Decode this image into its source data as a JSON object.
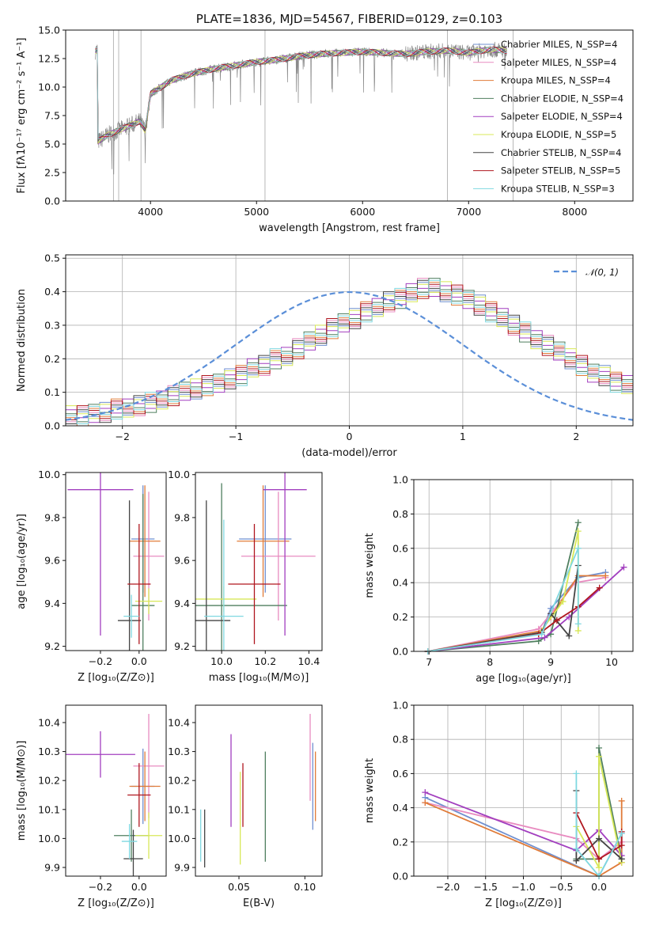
{
  "chart_data": [
    {
      "type": "line",
      "title": "PLATE=1836, MJD=54567, FIBERID=0129, z=0.103",
      "xlabel": "wavelength [Angstrom, rest frame]",
      "ylabel": "Flux [fλ10⁻¹⁷ erg cm⁻² s⁻¹ A⁻¹]",
      "xlim": [
        3200,
        8550
      ],
      "ylim": [
        0,
        15
      ],
      "xticks": [
        "4000",
        "5000",
        "6000",
        "7000",
        "8000"
      ],
      "yticks": [
        "0.0",
        "2.5",
        "5.0",
        "7.5",
        "10.0",
        "12.5",
        "15.0"
      ],
      "legend_position": "right",
      "spectrum_anchor_x": [
        3500,
        3600,
        3700,
        3800,
        3900,
        3950,
        4000,
        4100,
        4200,
        4400,
        4600,
        4800,
        5000,
        5200,
        5400,
        5600,
        5800,
        6000,
        6200,
        6400,
        6600,
        6800,
        7000,
        7200,
        7350
      ],
      "spectrum_anchor_y": [
        5.2,
        5.8,
        6.2,
        6.6,
        7.0,
        6.2,
        9.4,
        10.0,
        10.6,
        11.2,
        11.6,
        11.9,
        12.2,
        12.4,
        12.7,
        12.9,
        13.0,
        13.1,
        13.0,
        12.9,
        13.1,
        13.2,
        13.0,
        13.3,
        13.2
      ],
      "series": [
        {
          "name": "Chabrier MILES, N_SSP=4",
          "color": "#6f8fcf"
        },
        {
          "name": "Salpeter MILES, N_SSP=4",
          "color": "#e88bc0"
        },
        {
          "name": "Kroupa MILES, N_SSP=4",
          "color": "#e07b39"
        },
        {
          "name": "Chabrier ELODIE, N_SSP=4",
          "color": "#4f7f5f"
        },
        {
          "name": "Salpeter ELODIE, N_SSP=4",
          "color": "#a23fbf"
        },
        {
          "name": "Kroupa ELODIE, N_SSP=5",
          "color": "#d8e858"
        },
        {
          "name": "Chabrier STELIB, N_SSP=4",
          "color": "#444444"
        },
        {
          "name": "Salpeter STELIB, N_SSP=5",
          "color": "#b0171f"
        },
        {
          "name": "Kroupa STELIB, N_SSP=3",
          "color": "#7fd8e0"
        }
      ]
    },
    {
      "type": "histogram",
      "xlabel": "(data-model)/error",
      "ylabel": "Normed distribution",
      "xlim": [
        -2.5,
        2.5
      ],
      "ylim": [
        0,
        0.51
      ],
      "xticks": [
        "−2",
        "−1",
        "0",
        "1",
        "2"
      ],
      "yticks": [
        "0.0",
        "0.1",
        "0.2",
        "0.3",
        "0.4",
        "0.5"
      ],
      "legend": "𝒩(0, 1)",
      "legend_position": "top-right",
      "grid": true,
      "bin_width": 0.1,
      "bin_edges_start": -2.5,
      "hist_values": [
        0.03,
        0.03,
        0.04,
        0.04,
        0.05,
        0.05,
        0.06,
        0.07,
        0.08,
        0.09,
        0.1,
        0.11,
        0.12,
        0.13,
        0.14,
        0.15,
        0.17,
        0.18,
        0.2,
        0.21,
        0.23,
        0.25,
        0.27,
        0.29,
        0.31,
        0.32,
        0.34,
        0.35,
        0.37,
        0.38,
        0.4,
        0.41,
        0.41,
        0.4,
        0.39,
        0.38,
        0.36,
        0.34,
        0.32,
        0.3,
        0.28,
        0.26,
        0.24,
        0.22,
        0.2,
        0.18,
        0.16,
        0.15,
        0.13,
        0.12
      ]
    },
    {
      "type": "scatter",
      "xlabel": "Z [log₁₀(Z/Z⊙)]",
      "ylabel": "age  [log₁₀(age/yr)]",
      "xlim": [
        -0.38,
        0.14
      ],
      "ylim": [
        9.18,
        10.01
      ],
      "xticks": [
        "−0.2",
        "0.0"
      ],
      "yticks": [
        "9.2",
        "9.4",
        "9.6",
        "9.8",
        "10.0"
      ],
      "points": [
        {
          "x": 0.02,
          "xerr": 0.06,
          "y": 9.7,
          "yerr": 0.25,
          "c": "#6f8fcf"
        },
        {
          "x": 0.05,
          "xerr": 0.08,
          "y": 9.62,
          "yerr": 0.3,
          "c": "#e88bc0"
        },
        {
          "x": 0.03,
          "xerr": 0.08,
          "y": 9.69,
          "yerr": 0.26,
          "c": "#e07b39"
        },
        {
          "x": 0.02,
          "xerr": 0.06,
          "y": 9.39,
          "yerr": 0.52,
          "c": "#4f7f5f"
        },
        {
          "x": -0.2,
          "xerr": 0.17,
          "y": 9.93,
          "yerr": 0.68,
          "c": "#a23fbf"
        },
        {
          "x": 0.05,
          "xerr": 0.07,
          "y": 9.41,
          "yerr": 0.06,
          "c": "#d8e858"
        },
        {
          "x": -0.05,
          "xerr": 0.06,
          "y": 9.32,
          "yerr": 0.56,
          "c": "#444444"
        },
        {
          "x": 0.0,
          "xerr": 0.06,
          "y": 9.49,
          "yerr": 0.28,
          "c": "#b0171f"
        },
        {
          "x": -0.04,
          "xerr": 0.04,
          "y": 9.34,
          "yerr": 0.1,
          "c": "#7fd8e0"
        }
      ]
    },
    {
      "type": "scatter",
      "xlabel": "mass [log₁₀(M/M⊙)]",
      "ylabel": "",
      "xlim": [
        9.88,
        10.46
      ],
      "ylim": [
        9.18,
        10.01
      ],
      "xticks": [
        "10.0",
        "10.2",
        "10.4"
      ],
      "yticks": [
        "9.2",
        "9.4",
        "9.6",
        "9.8",
        "10.0"
      ],
      "points": [
        {
          "x": 10.2,
          "xerr": 0.12,
          "y": 9.7,
          "yerr": 0.25,
          "c": "#6f8fcf"
        },
        {
          "x": 10.26,
          "xerr": 0.17,
          "y": 9.62,
          "yerr": 0.3,
          "c": "#e88bc0"
        },
        {
          "x": 10.19,
          "xerr": 0.12,
          "y": 9.69,
          "yerr": 0.26,
          "c": "#e07b39"
        },
        {
          "x": 10.0,
          "xerr": 0.3,
          "y": 9.39,
          "yerr": 0.57,
          "c": "#4f7f5f"
        },
        {
          "x": 10.29,
          "xerr": 0.1,
          "y": 9.93,
          "yerr": 0.68,
          "c": "#a23fbf"
        },
        {
          "x": 10.01,
          "xerr": 0.15,
          "y": 9.42,
          "yerr": 0.06,
          "c": "#d8e858"
        },
        {
          "x": 9.93,
          "xerr": 0.11,
          "y": 9.32,
          "yerr": 0.56,
          "c": "#444444"
        },
        {
          "x": 10.15,
          "xerr": 0.12,
          "y": 9.49,
          "yerr": 0.28,
          "c": "#b0171f"
        },
        {
          "x": 10.01,
          "xerr": 0.09,
          "y": 9.34,
          "yerr": 0.45,
          "c": "#7fd8e0"
        }
      ]
    },
    {
      "type": "line",
      "xlabel": "age  [log₁₀(age/yr)]",
      "ylabel": "mass weight",
      "xlim": [
        6.75,
        10.35
      ],
      "ylim": [
        0,
        1
      ],
      "xticks": [
        "7",
        "8",
        "9",
        "10"
      ],
      "yticks": [
        "0.0",
        "0.2",
        "0.4",
        "0.6",
        "0.8",
        "1.0"
      ],
      "grid": true,
      "series": [
        {
          "c": "#6f8fcf",
          "x": [
            6.98,
            8.85,
            9.0,
            9.45,
            9.9
          ],
          "y": [
            0.0,
            0.11,
            0.25,
            0.43,
            0.46
          ]
        },
        {
          "c": "#e88bc0",
          "x": [
            6.98,
            8.8,
            9.0,
            9.4,
            9.9
          ],
          "y": [
            0.0,
            0.13,
            0.22,
            0.4,
            0.43
          ]
        },
        {
          "c": "#e07b39",
          "x": [
            6.98,
            8.85,
            9.0,
            9.45,
            9.9
          ],
          "y": [
            0.0,
            0.12,
            0.2,
            0.44,
            0.44
          ]
        },
        {
          "c": "#4f7f5f",
          "x": [
            6.98,
            8.8,
            9.0,
            9.45
          ],
          "y": [
            0.0,
            0.06,
            0.1,
            0.75
          ]
        },
        {
          "c": "#a23fbf",
          "x": [
            6.98,
            8.9,
            9.3,
            10.2
          ],
          "y": [
            0.0,
            0.08,
            0.2,
            0.49
          ]
        },
        {
          "c": "#d8e858",
          "x": [
            6.98,
            8.8,
            9.2,
            9.45,
            9.45
          ],
          "y": [
            0.0,
            0.1,
            0.29,
            0.7,
            0.12
          ]
        },
        {
          "c": "#444444",
          "x": [
            6.98,
            8.85,
            9.0,
            9.3,
            9.45
          ],
          "y": [
            0.0,
            0.11,
            0.22,
            0.09,
            0.5
          ]
        },
        {
          "c": "#b0171f",
          "x": [
            6.98,
            8.8,
            9.1,
            9.45,
            9.8
          ],
          "y": [
            0.0,
            0.1,
            0.18,
            0.26,
            0.37
          ]
        },
        {
          "c": "#7fd8e0",
          "x": [
            6.98,
            8.85,
            9.45,
            9.45
          ],
          "y": [
            0.0,
            0.1,
            0.6,
            0.16
          ]
        }
      ]
    },
    {
      "type": "scatter",
      "xlabel": "Z [log₁₀(Z/Z⊙)]",
      "ylabel": "mass [log₁₀(M/M⊙)]",
      "xlim": [
        -0.38,
        0.14
      ],
      "ylim": [
        9.87,
        10.46
      ],
      "xticks": [
        "−0.2",
        "0.0"
      ],
      "yticks": [
        "9.9",
        "10.0",
        "10.1",
        "10.2",
        "10.3",
        "10.4"
      ],
      "points": [
        {
          "x": 0.02,
          "xerr": 0.06,
          "y": 10.18,
          "yerr": 0.13,
          "c": "#6f8fcf"
        },
        {
          "x": 0.05,
          "xerr": 0.08,
          "y": 10.25,
          "yerr": 0.18,
          "c": "#e88bc0"
        },
        {
          "x": 0.03,
          "xerr": 0.08,
          "y": 10.18,
          "yerr": 0.12,
          "c": "#e07b39"
        },
        {
          "x": -0.04,
          "xerr": 0.09,
          "y": 10.01,
          "yerr": 0.09,
          "c": "#4f7f5f"
        },
        {
          "x": -0.2,
          "xerr": 0.18,
          "y": 10.29,
          "yerr": 0.08,
          "c": "#a23fbf"
        },
        {
          "x": 0.05,
          "xerr": 0.07,
          "y": 10.01,
          "yerr": 0.08,
          "c": "#d8e858"
        },
        {
          "x": -0.03,
          "xerr": 0.05,
          "y": 9.93,
          "yerr": 0.1,
          "c": "#444444"
        },
        {
          "x": 0.0,
          "xerr": 0.06,
          "y": 10.15,
          "yerr": 0.11,
          "c": "#b0171f"
        },
        {
          "x": -0.05,
          "xerr": 0.04,
          "y": 9.99,
          "yerr": 0.06,
          "c": "#7fd8e0"
        }
      ]
    },
    {
      "type": "scatter",
      "xlabel": "E(B-V)",
      "ylabel": "",
      "xlim": [
        0.017,
        0.113
      ],
      "ylim": [
        9.87,
        10.46
      ],
      "xticks": [
        "0.05",
        "0.10"
      ],
      "yticks": [
        "9.9",
        "10.0",
        "10.1",
        "10.2",
        "10.3",
        "10.4"
      ],
      "points": [
        {
          "x": 0.021,
          "y": 10.01,
          "yerr": 0.09,
          "c": "#7fd8e0"
        },
        {
          "x": 0.024,
          "y": 10.0,
          "yerr": 0.1,
          "c": "#444444"
        },
        {
          "x": 0.044,
          "y": 10.2,
          "yerr": 0.16,
          "c": "#a23fbf"
        },
        {
          "x": 0.051,
          "y": 10.07,
          "yerr": 0.16,
          "c": "#d8e858"
        },
        {
          "x": 0.053,
          "y": 10.15,
          "yerr": 0.11,
          "c": "#b0171f"
        },
        {
          "x": 0.07,
          "y": 10.11,
          "yerr": 0.19,
          "c": "#4f7f5f"
        },
        {
          "x": 0.104,
          "y": 10.28,
          "yerr": 0.15,
          "c": "#e88bc0"
        },
        {
          "x": 0.106,
          "y": 10.18,
          "yerr": 0.15,
          "c": "#6f8fcf"
        },
        {
          "x": 0.108,
          "y": 10.18,
          "yerr": 0.12,
          "c": "#e07b39"
        }
      ]
    },
    {
      "type": "line",
      "xlabel": "Z [log₁₀(Z/Z⊙)]",
      "ylabel": "mass weight",
      "xlim": [
        -2.45,
        0.45
      ],
      "ylim": [
        0,
        1
      ],
      "xticks": [
        "−2.0",
        "−1.5",
        "−1.0",
        "−0.5",
        "0.0"
      ],
      "yticks": [
        "0.0",
        "0.2",
        "0.4",
        "0.6",
        "0.8",
        "1.0"
      ],
      "grid": true,
      "series": [
        {
          "c": "#6f8fcf",
          "x": [
            -2.3,
            0.0,
            0.3,
            0.3
          ],
          "y": [
            0.46,
            0.0,
            0.25,
            0.1
          ]
        },
        {
          "c": "#e88bc0",
          "x": [
            -2.3,
            -0.3,
            0.0,
            0.3
          ],
          "y": [
            0.43,
            0.22,
            0.1,
            0.2
          ]
        },
        {
          "c": "#e07b39",
          "x": [
            -2.3,
            0.0,
            0.3,
            0.3
          ],
          "y": [
            0.43,
            0.0,
            0.08,
            0.44
          ]
        },
        {
          "c": "#4f7f5f",
          "x": [
            -0.3,
            0.0,
            0.0,
            0.3
          ],
          "y": [
            0.1,
            0.1,
            0.75,
            0.1
          ]
        },
        {
          "c": "#a23fbf",
          "x": [
            -2.3,
            -0.3,
            0.0,
            0.3
          ],
          "y": [
            0.49,
            0.15,
            0.27,
            0.12
          ]
        },
        {
          "c": "#d8e858",
          "x": [
            -0.3,
            0.0,
            0.0,
            0.3
          ],
          "y": [
            0.29,
            0.05,
            0.7,
            0.08
          ]
        },
        {
          "c": "#444444",
          "x": [
            -0.3,
            -0.3,
            0.0,
            0.3
          ],
          "y": [
            0.5,
            0.09,
            0.22,
            0.1
          ]
        },
        {
          "c": "#b0171f",
          "x": [
            -0.3,
            0.0,
            0.3,
            0.3
          ],
          "y": [
            0.37,
            0.1,
            0.18,
            0.26
          ]
        },
        {
          "c": "#7fd8e0",
          "x": [
            -0.3,
            -0.3,
            0.0,
            0.3
          ],
          "y": [
            0.6,
            0.16,
            0.0,
            0.25
          ]
        }
      ]
    }
  ]
}
